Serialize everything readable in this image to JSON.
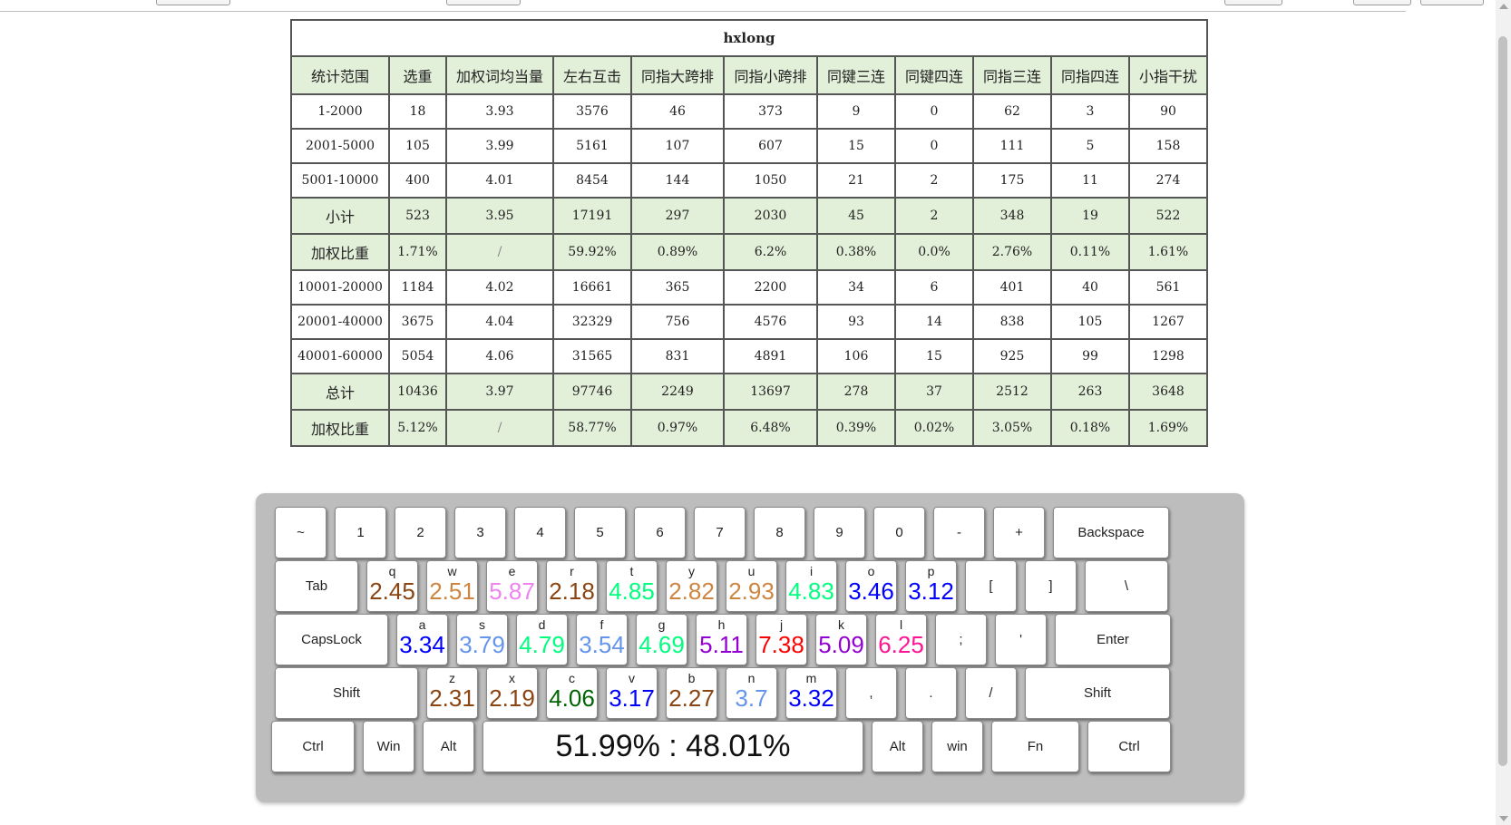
{
  "table": {
    "title": "hxlong",
    "headers": [
      "统计范围",
      "选重",
      "加权词均当量",
      "左右互击",
      "同指大跨排",
      "同指小跨排",
      "同键三连",
      "同键四连",
      "同指三连",
      "同指四连",
      "小指干扰"
    ],
    "rows": [
      {
        "type": "norm",
        "cells": [
          "1-2000",
          "18",
          "3.93",
          "3576",
          "46",
          "373",
          "9",
          "0",
          "62",
          "3",
          "90"
        ]
      },
      {
        "type": "norm",
        "cells": [
          "2001-5000",
          "105",
          "3.99",
          "5161",
          "107",
          "607",
          "15",
          "0",
          "111",
          "5",
          "158"
        ]
      },
      {
        "type": "norm",
        "cells": [
          "5001-10000",
          "400",
          "4.01",
          "8454",
          "144",
          "1050",
          "21",
          "2",
          "175",
          "11",
          "274"
        ]
      },
      {
        "type": "sub",
        "cells": [
          "小计",
          "523",
          "3.95",
          "17191",
          "297",
          "2030",
          "45",
          "2",
          "348",
          "19",
          "522"
        ]
      },
      {
        "type": "sub",
        "cells": [
          "加权比重",
          "1.71%",
          "/",
          "59.92%",
          "0.89%",
          "6.2%",
          "0.38%",
          "0.0%",
          "2.76%",
          "0.11%",
          "1.61%"
        ]
      },
      {
        "type": "norm",
        "cells": [
          "10001-20000",
          "1184",
          "4.02",
          "16661",
          "365",
          "2200",
          "34",
          "6",
          "401",
          "40",
          "561"
        ]
      },
      {
        "type": "norm",
        "cells": [
          "20001-40000",
          "3675",
          "4.04",
          "32329",
          "756",
          "4576",
          "93",
          "14",
          "838",
          "105",
          "1267"
        ]
      },
      {
        "type": "norm",
        "cells": [
          "40001-60000",
          "5054",
          "4.06",
          "31565",
          "831",
          "4891",
          "106",
          "15",
          "925",
          "99",
          "1298"
        ]
      },
      {
        "type": "sub",
        "cells": [
          "总计",
          "10436",
          "3.97",
          "97746",
          "2249",
          "13697",
          "278",
          "37",
          "2512",
          "263",
          "3648"
        ]
      },
      {
        "type": "sub",
        "cells": [
          "加权比重",
          "5.12%",
          "/",
          "58.77%",
          "0.97%",
          "6.48%",
          "0.39%",
          "0.02%",
          "3.05%",
          "0.18%",
          "1.69%"
        ]
      }
    ]
  },
  "keyboard": {
    "rows": [
      [
        {
          "label": "~",
          "w": 57
        },
        {
          "label": "1",
          "w": 57
        },
        {
          "label": "2",
          "w": 57
        },
        {
          "label": "3",
          "w": 57
        },
        {
          "label": "4",
          "w": 57
        },
        {
          "label": "5",
          "w": 57
        },
        {
          "label": "6",
          "w": 57
        },
        {
          "label": "7",
          "w": 57
        },
        {
          "label": "8",
          "w": 57
        },
        {
          "label": "9",
          "w": 57
        },
        {
          "label": "0",
          "w": 57
        },
        {
          "label": "-",
          "w": 57
        },
        {
          "label": "+",
          "w": 57
        },
        {
          "label": "Backspace",
          "w": 128
        }
      ],
      [
        {
          "label": "Tab",
          "w": 92
        },
        {
          "label": "q",
          "value": "2.45",
          "color": "#8B4513",
          "w": 57
        },
        {
          "label": "w",
          "value": "2.51",
          "color": "#CD853F",
          "w": 57
        },
        {
          "label": "e",
          "value": "5.87",
          "color": "#EE82EE",
          "w": 57
        },
        {
          "label": "r",
          "value": "2.18",
          "color": "#8B4513",
          "w": 57
        },
        {
          "label": "t",
          "value": "4.85",
          "color": "#00FF7F",
          "w": 57
        },
        {
          "label": "y",
          "value": "2.82",
          "color": "#CD853F",
          "w": 57
        },
        {
          "label": "u",
          "value": "2.93",
          "color": "#CD853F",
          "w": 57
        },
        {
          "label": "i",
          "value": "4.83",
          "color": "#00FF7F",
          "w": 57
        },
        {
          "label": "o",
          "value": "3.46",
          "color": "#0000FF",
          "w": 57
        },
        {
          "label": "p",
          "value": "3.12",
          "color": "#0000FF",
          "w": 57
        },
        {
          "label": "[",
          "w": 57
        },
        {
          "label": "]",
          "w": 57
        },
        {
          "label": "\\",
          "w": 92
        }
      ],
      [
        {
          "label": "CapsLock",
          "w": 125
        },
        {
          "label": "a",
          "value": "3.34",
          "color": "#0000FF",
          "w": 57
        },
        {
          "label": "s",
          "value": "3.79",
          "color": "#6495ED",
          "w": 57
        },
        {
          "label": "d",
          "value": "4.79",
          "color": "#00FF7F",
          "w": 57
        },
        {
          "label": "f",
          "value": "3.54",
          "color": "#6495ED",
          "w": 57
        },
        {
          "label": "g",
          "value": "4.69",
          "color": "#00FF7F",
          "w": 57
        },
        {
          "label": "h",
          "value": "5.11",
          "color": "#9400D3",
          "w": 57
        },
        {
          "label": "j",
          "value": "7.38",
          "color": "#FF0000",
          "w": 57
        },
        {
          "label": "k",
          "value": "5.09",
          "color": "#9400D3",
          "w": 57
        },
        {
          "label": "l",
          "value": "6.25",
          "color": "#FF1493",
          "w": 57
        },
        {
          "label": ";",
          "w": 57
        },
        {
          "label": "'",
          "w": 57
        },
        {
          "label": "Enter",
          "w": 128
        }
      ],
      [
        {
          "label": "Shift",
          "w": 158
        },
        {
          "label": "z",
          "value": "2.31",
          "color": "#8B4513",
          "w": 57
        },
        {
          "label": "x",
          "value": "2.19",
          "color": "#8B4513",
          "w": 57
        },
        {
          "label": "c",
          "value": "4.06",
          "color": "#006400",
          "w": 57
        },
        {
          "label": "v",
          "value": "3.17",
          "color": "#0000FF",
          "w": 57
        },
        {
          "label": "b",
          "value": "2.27",
          "color": "#8B4513",
          "w": 57
        },
        {
          "label": "n",
          "value": "3.7",
          "color": "#6495ED",
          "w": 57
        },
        {
          "label": "m",
          "value": "3.32",
          "color": "#0000FF",
          "w": 57
        },
        {
          "label": ",",
          "w": 57
        },
        {
          "label": ".",
          "w": 57
        },
        {
          "label": "/",
          "w": 57
        },
        {
          "label": "Shift",
          "w": 160
        }
      ],
      [
        {
          "label": "Ctrl",
          "w": 92
        },
        {
          "label": "Win",
          "w": 57
        },
        {
          "label": "Alt",
          "w": 57
        },
        {
          "label": "",
          "space": true,
          "w": 420
        },
        {
          "label": "Alt",
          "w": 57
        },
        {
          "label": "win",
          "w": 57
        },
        {
          "label": "Fn",
          "w": 97
        },
        {
          "label": "Ctrl",
          "w": 92
        }
      ]
    ],
    "space_ratio": "51.99% : 48.01%"
  }
}
